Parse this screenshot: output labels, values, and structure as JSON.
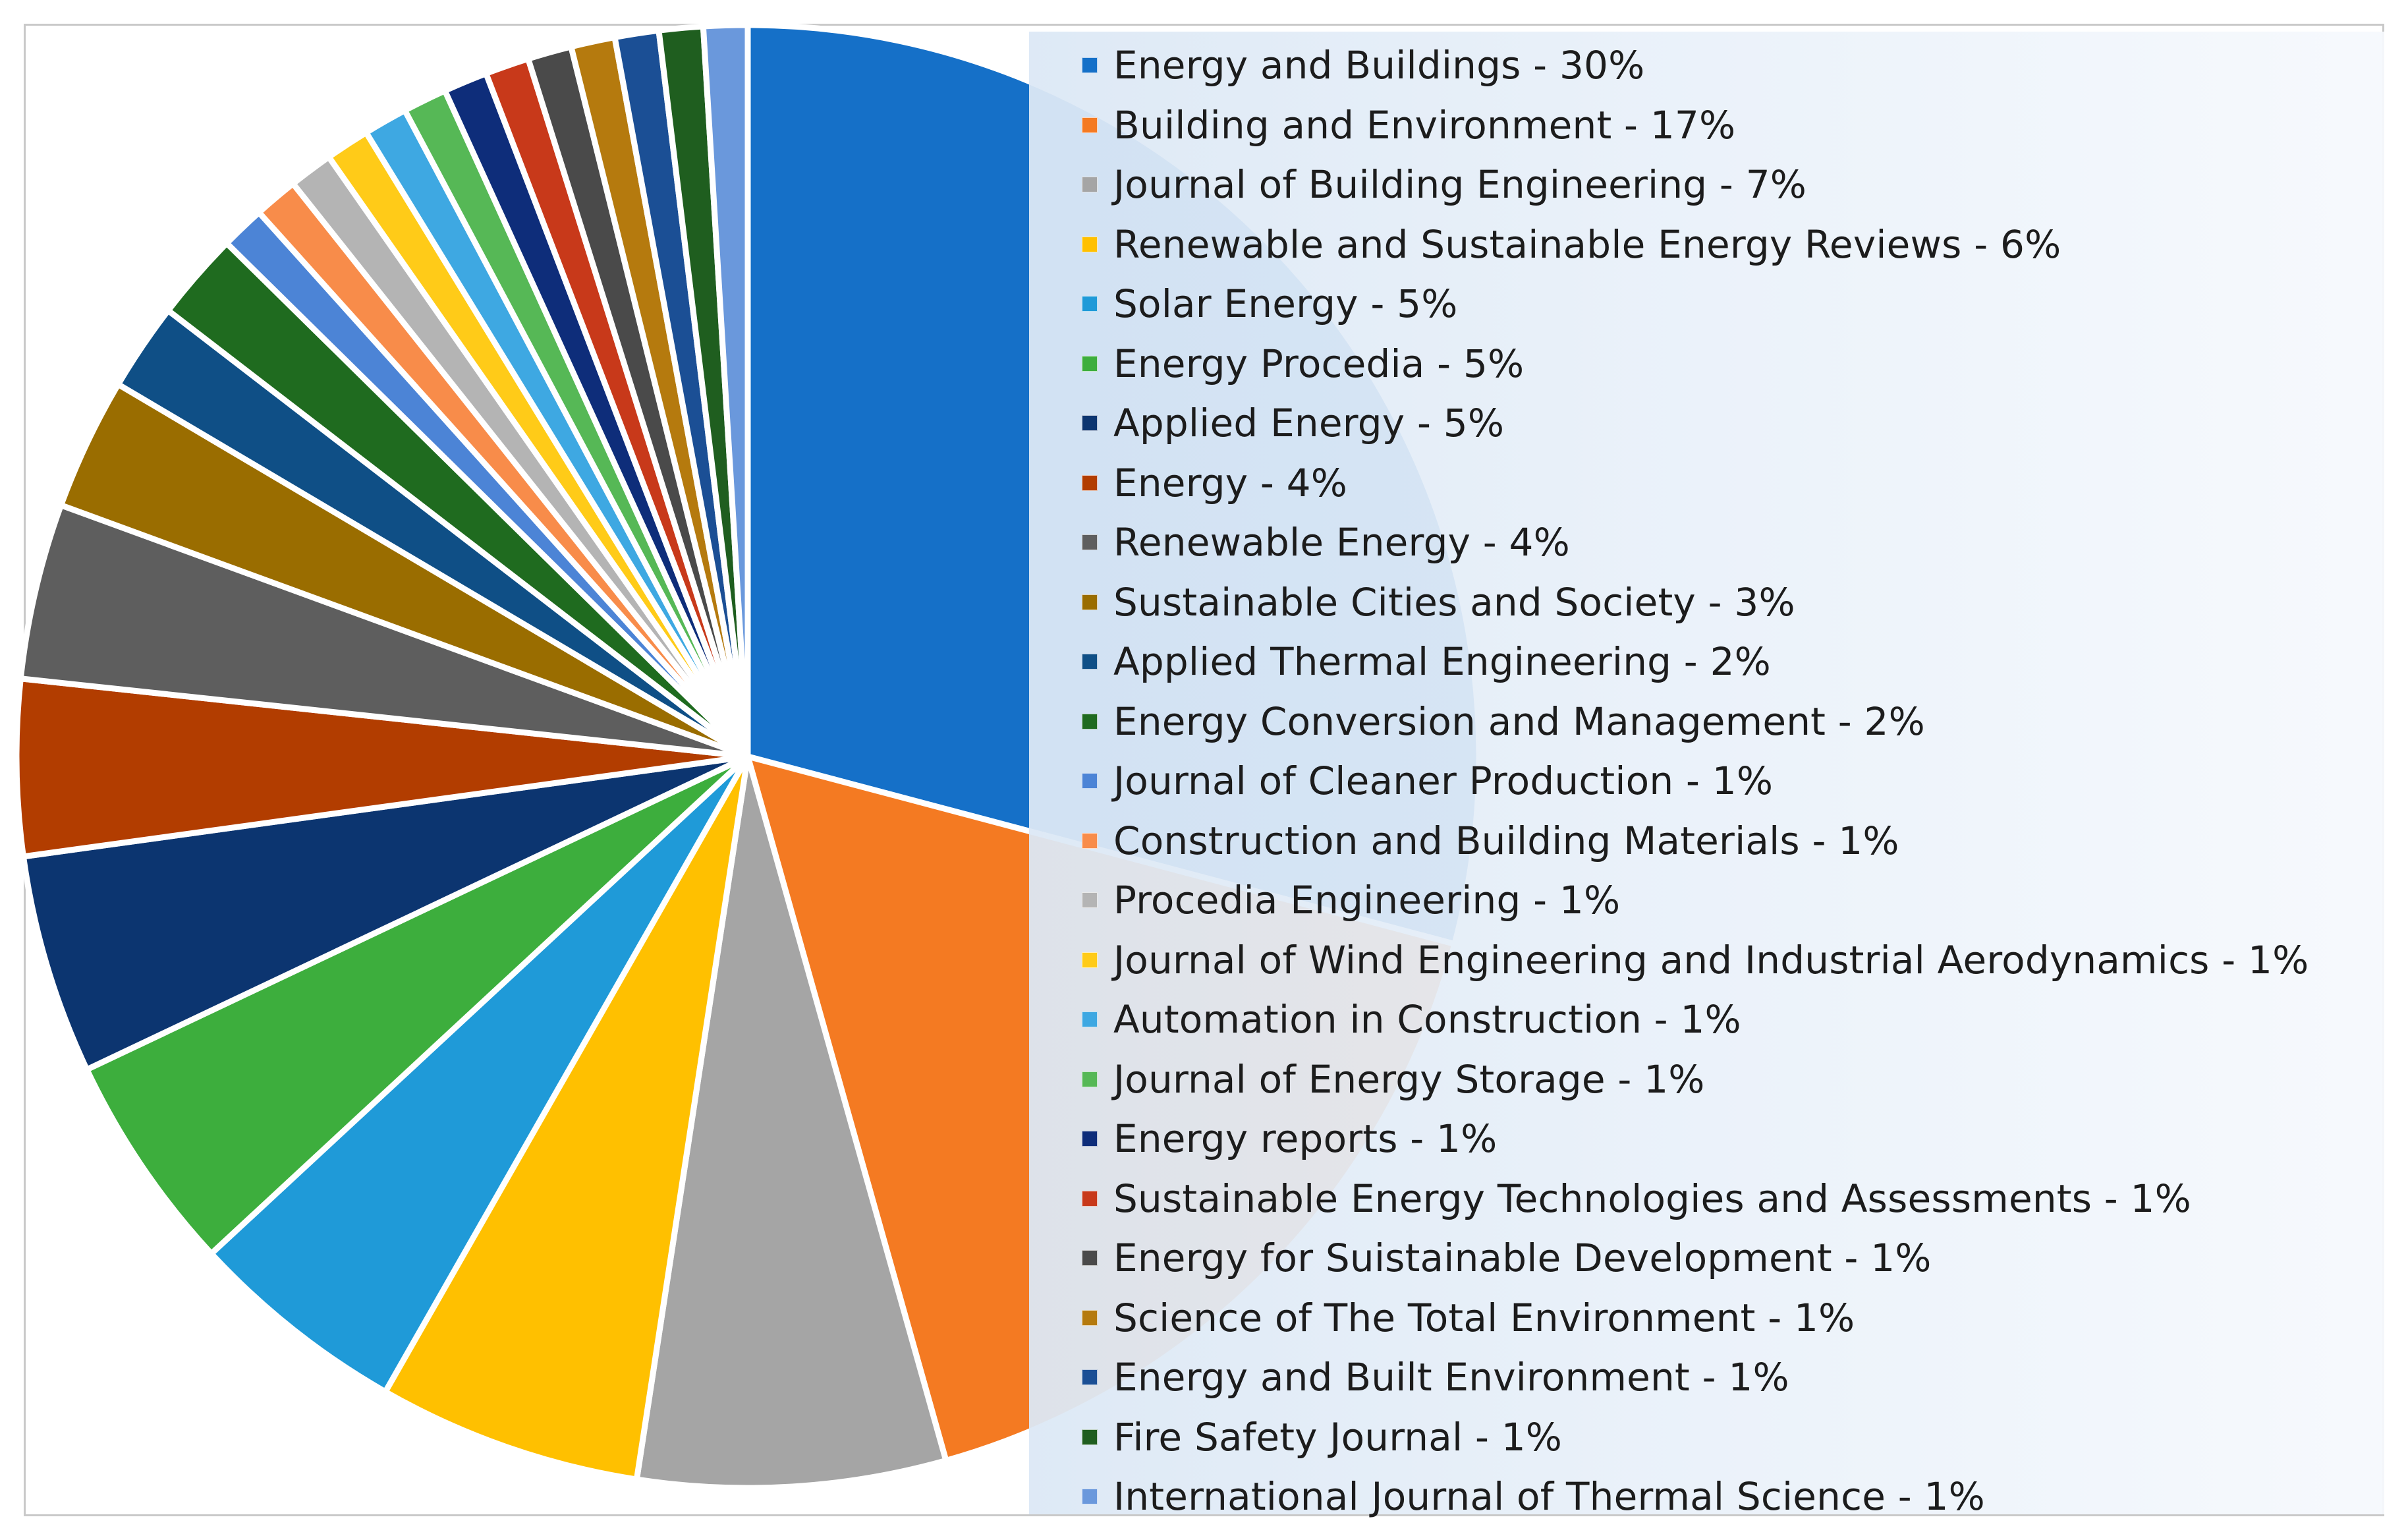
{
  "chart_data": {
    "type": "pie",
    "title": "",
    "start_angle_deg": 0,
    "direction": "clockwise",
    "legend_position": "right",
    "series": [
      {
        "name": "Energy and Buildings",
        "value": 30,
        "label": "Energy and Buildings - 30%",
        "color": "#1570C8"
      },
      {
        "name": "Building and Environment",
        "value": 17,
        "label": "Building and Environment - 17%",
        "color": "#F47A22"
      },
      {
        "name": "Journal of Building Engineering",
        "value": 7,
        "label": "Journal of Building Engineering - 7%",
        "color": "#A5A5A5"
      },
      {
        "name": "Renewable and Sustainable Energy Reviews",
        "value": 6,
        "label": "Renewable and Sustainable Energy Reviews - 6%",
        "color": "#FFC000"
      },
      {
        "name": "Solar Energy",
        "value": 5,
        "label": "Solar Energy - 5%",
        "color": "#1F9AD8"
      },
      {
        "name": "Energy Procedia",
        "value": 5,
        "label": "Energy Procedia - 5%",
        "color": "#3DAE3D"
      },
      {
        "name": "Applied Energy",
        "value": 5,
        "label": "Applied Energy - 5%",
        "color": "#0C3570"
      },
      {
        "name": "Energy",
        "value": 4,
        "label": "Energy - 4%",
        "color": "#B23D00"
      },
      {
        "name": "Renewable Energy",
        "value": 4,
        "label": "Renewable Energy - 4%",
        "color": "#5E5E5E"
      },
      {
        "name": "Sustainable Cities and Society",
        "value": 3,
        "label": "Sustainable Cities and Society - 3%",
        "color": "#9A6D00"
      },
      {
        "name": "Applied Thermal Engineering",
        "value": 2,
        "label": "Applied Thermal Engineering - 2%",
        "color": "#0F4F86"
      },
      {
        "name": "Energy Conversion and Management",
        "value": 2,
        "label": "Energy Conversion and Management - 2%",
        "color": "#1F6B1F"
      },
      {
        "name": "Journal of Cleaner Production",
        "value": 1,
        "label": "Journal of Cleaner Production - 1%",
        "color": "#4C84D6"
      },
      {
        "name": "Construction and Building Materials",
        "value": 1,
        "label": "Construction and Building Materials - 1%",
        "color": "#F88C4A"
      },
      {
        "name": "Procedia Engineering",
        "value": 1,
        "label": "Procedia Engineering - 1%",
        "color": "#B4B4B4"
      },
      {
        "name": "Journal of Wind Engineering and Industrial Aerodynamics",
        "value": 1,
        "label": "Journal of Wind Engineering and Industrial Aerodynamics - 1%",
        "color": "#FFCB18"
      },
      {
        "name": "Automation in Construction",
        "value": 1,
        "label": "Automation in Construction - 1%",
        "color": "#3EA8E2"
      },
      {
        "name": "Journal of Energy Storage",
        "value": 1,
        "label": "Journal of Energy Storage - 1%",
        "color": "#56B856"
      },
      {
        "name": "Energy reports",
        "value": 1,
        "label": "Energy reports - 1%",
        "color": "#0E2D7A"
      },
      {
        "name": "Sustainable Energy Technologies and Assessments",
        "value": 1,
        "label": "Sustainable Energy Technologies and Assessments - 1%",
        "color": "#C8391A"
      },
      {
        "name": "Energy for Suistainable Development",
        "value": 1,
        "label": "Energy for Suistainable Development - 1%",
        "color": "#4A4A4A"
      },
      {
        "name": "Science of The Total Environment",
        "value": 1,
        "label": "Science of The Total Environment - 1%",
        "color": "#B57A0E"
      },
      {
        "name": "Energy and Built Environment",
        "value": 1,
        "label": "Energy and Built Environment - 1%",
        "color": "#1B4F95"
      },
      {
        "name": "Fire Safety Journal",
        "value": 1,
        "label": "Fire Safety Journal - 1%",
        "color": "#1F5E1F"
      },
      {
        "name": "International Journal of Thermal Science",
        "value": 1,
        "label": "International Journal of Thermal Science - 1%",
        "color": "#6A98DC"
      }
    ]
  }
}
